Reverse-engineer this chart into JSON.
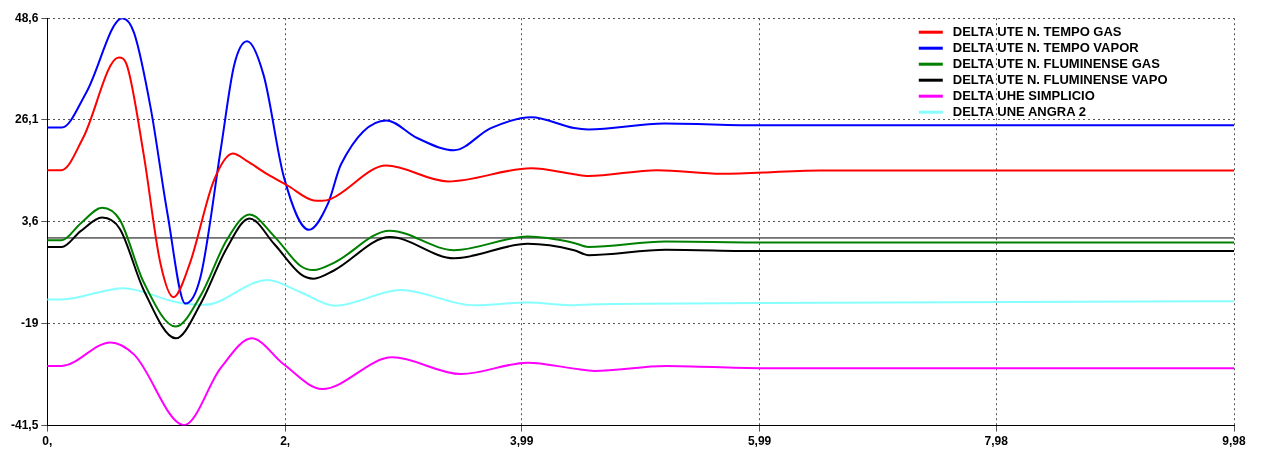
{
  "chart_data": {
    "type": "line",
    "xlim": [
      0,
      9.98
    ],
    "ylim": [
      -41.5,
      48.6
    ],
    "xticks": [
      {
        "value": 0,
        "label": "0,"
      },
      {
        "value": 2,
        "label": "2,"
      },
      {
        "value": 3.99,
        "label": "3,99"
      },
      {
        "value": 5.99,
        "label": "5,99"
      },
      {
        "value": 7.98,
        "label": "7,98"
      },
      {
        "value": 9.98,
        "label": "9,98"
      }
    ],
    "yticks": [
      {
        "value": -41.5,
        "label": "-41,5"
      },
      -19,
      {
        "value": 3.6,
        "label": "3,6"
      },
      {
        "value": 26.1,
        "label": "26,1"
      },
      {
        "value": 48.6,
        "label": "48,6"
      }
    ],
    "grid": true,
    "legend": "top right",
    "marker": "none",
    "line_style": "solid",
    "ref_lines": [
      {
        "axis": "y",
        "value": 0,
        "color": "#000000"
      }
    ],
    "series": [
      {
        "name": "DELTA UTE N. TEMPO GAS",
        "color": "#ff0000",
        "x": [
          0,
          0.12,
          0.3,
          0.6,
          0.67,
          0.81,
          0.95,
          1.06,
          1.2,
          1.4,
          1.56,
          1.68,
          1.85,
          2.02,
          2.24,
          2.31,
          2.39,
          2.85,
          3.37,
          4.07,
          4.43,
          4.55,
          5.13,
          5.67,
          6.5,
          8,
          9.98
        ],
        "values": [
          15,
          15,
          22.1,
          39.9,
          38.1,
          18.5,
          -5.5,
          -13.1,
          -5.5,
          12.7,
          18.7,
          17,
          14.1,
          11.6,
          8.3,
          8.2,
          8.7,
          16,
          12.5,
          15.4,
          14.1,
          13.7,
          15,
          14.2,
          14.9,
          14.9,
          14.9
        ]
      },
      {
        "name": "DELTA UTE N. TEMPO VAPOR",
        "color": "#0000ff",
        "x": [
          0,
          0.12,
          0.33,
          0.63,
          0.73,
          0.87,
          1.01,
          1.16,
          1.29,
          1.46,
          1.57,
          1.68,
          1.82,
          1.99,
          2.2,
          2.36,
          2.47,
          2.85,
          3.11,
          3.42,
          3.73,
          4.07,
          4.43,
          4.55,
          5.19,
          6,
          7,
          9.98
        ],
        "values": [
          24.4,
          24.4,
          32.3,
          48.6,
          45.3,
          28.6,
          5.4,
          -14.5,
          -8.4,
          19.9,
          38.1,
          43.5,
          35.9,
          13.4,
          1.8,
          7.6,
          16.3,
          26,
          22.1,
          19.4,
          24.3,
          26.7,
          24.3,
          24,
          25.3,
          24.9,
          24.9,
          24.9
        ]
      },
      {
        "name": "DELTA UTE N. FLUMINENSE GAS",
        "color": "#008000",
        "x": [
          0,
          0.12,
          0.28,
          0.46,
          0.61,
          0.81,
          1.08,
          1.29,
          1.51,
          1.7,
          1.91,
          2.13,
          2.24,
          2.41,
          2.88,
          3.42,
          4.04,
          4.43,
          4.55,
          5.2,
          6,
          9.98
        ],
        "values": [
          -0.5,
          -0.5,
          3.2,
          6.7,
          4,
          -9.8,
          -19.6,
          -12.7,
          -0.4,
          5.2,
          0.3,
          -6.2,
          -7.1,
          -5.5,
          1.6,
          -2.7,
          0.3,
          -1.1,
          -2,
          -0.8,
          -1,
          -1
        ]
      },
      {
        "name": "DELTA UTE N. FLUMINENSE VAPO",
        "color": "#000000",
        "x": [
          0,
          0.12,
          0.28,
          0.46,
          0.61,
          0.81,
          1.08,
          1.29,
          1.51,
          1.7,
          1.91,
          2.13,
          2.24,
          2.41,
          2.88,
          3.42,
          4.04,
          4.43,
          4.55,
          5.2,
          6,
          9.98
        ],
        "values": [
          -2,
          -2,
          1.5,
          4.5,
          2,
          -11.5,
          -22.2,
          -14.5,
          -2.2,
          4.3,
          -1.4,
          -8,
          -9,
          -7.2,
          0.2,
          -4.5,
          -1.3,
          -2.7,
          -3.8,
          -2.6,
          -2.9,
          -2.9
        ]
      },
      {
        "name": "DELTA UHE SIMPLICIO",
        "color": "#ff00ff",
        "x": [
          0,
          0.12,
          0.53,
          0.73,
          1.15,
          1.46,
          1.72,
          1.99,
          2.31,
          2.9,
          3.48,
          4.04,
          4.43,
          4.6,
          5.2,
          6,
          9.98
        ],
        "values": [
          -28.3,
          -28.3,
          -23.1,
          -25.8,
          -41.4,
          -28.7,
          -22.2,
          -28,
          -33.4,
          -26.4,
          -30.1,
          -27.6,
          -28.9,
          -29.4,
          -28.3,
          -28.8,
          -28.8
        ]
      },
      {
        "name": "DELTA UNE ANGRA 2",
        "color": "#88ffff",
        "x": [
          0,
          0.12,
          0.64,
          1.09,
          1.32,
          1.85,
          2.13,
          2.42,
          2.97,
          3.59,
          4.04,
          4.43,
          4.55,
          6,
          9.98
        ],
        "values": [
          -13.6,
          -13.6,
          -11.1,
          -14.2,
          -14.8,
          -9.3,
          -12,
          -15,
          -11.5,
          -14.9,
          -14.3,
          -14.9,
          -14.7,
          -14.4,
          -14
        ]
      }
    ]
  }
}
